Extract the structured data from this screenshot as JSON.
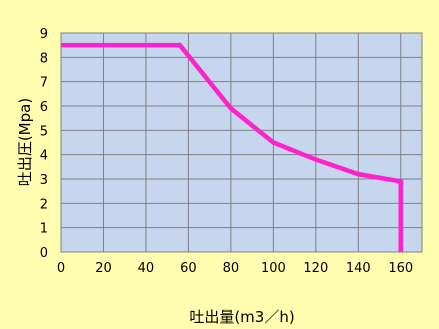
{
  "chart_data": {
    "type": "line",
    "title": "",
    "xlabel": "吐出量(m3／h)",
    "ylabel": "吐出圧(Mpa)",
    "xlim": [
      0,
      170
    ],
    "ylim": [
      0,
      9
    ],
    "xticks": [
      0,
      20,
      40,
      60,
      80,
      100,
      120,
      140,
      160
    ],
    "yticks": [
      0,
      1,
      2,
      3,
      4,
      5,
      6,
      7,
      8,
      9
    ],
    "grid": true,
    "legend": "none",
    "colors": {
      "line": "#ff22cc",
      "plot_bg": "#c5d6ee",
      "page_bg": "#fffeb0",
      "grid": "#808080"
    },
    "series": [
      {
        "x": [
          0,
          56,
          80,
          100,
          120,
          140,
          160,
          160
        ],
        "y": [
          8.5,
          8.5,
          5.9,
          4.5,
          3.8,
          3.2,
          2.9,
          0
        ]
      }
    ]
  }
}
